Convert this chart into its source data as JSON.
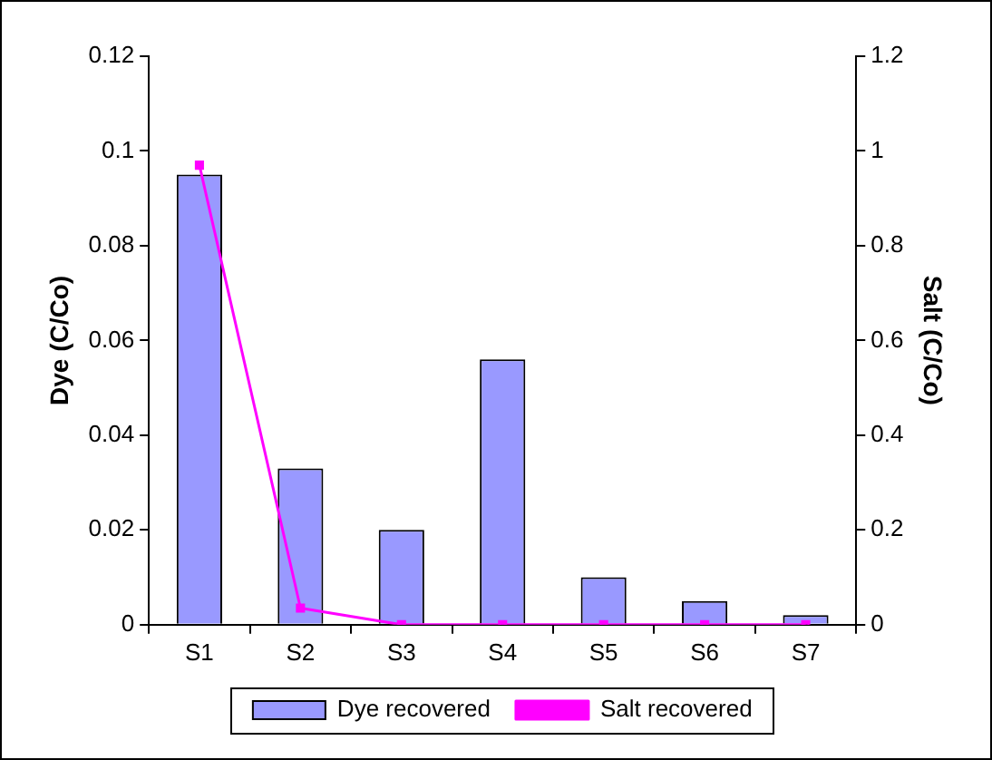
{
  "chart_data": {
    "type": "bar",
    "ylabel": "Dye (C/Co)",
    "y2label": "Salt (C/Co)",
    "categories": [
      "S1",
      "S2",
      "S3",
      "S4",
      "S5",
      "S6",
      "S7"
    ],
    "series": [
      {
        "name": "Dye recovered",
        "color": "#9999ff",
        "values": [
          0.095,
          0.033,
          0.02,
          0.056,
          0.01,
          0.005,
          0.002
        ]
      },
      {
        "name": "Salt recovered",
        "type": "line",
        "axis": "y2",
        "color": "#ff00ff",
        "values": [
          0.97,
          0.035,
          0,
          0,
          0,
          0,
          0
        ]
      }
    ],
    "ylim": [
      0,
      0.12
    ],
    "yticks": [
      0,
      0.02,
      0.04,
      0.06,
      0.08,
      0.1,
      0.12
    ],
    "y2lim": [
      0,
      1.2
    ],
    "y2ticks": [
      0,
      0.2,
      0.4,
      0.6,
      0.8,
      1,
      1.2
    ],
    "grid": false,
    "legend": "bottom",
    "marker": "square",
    "line_style": "solid"
  }
}
